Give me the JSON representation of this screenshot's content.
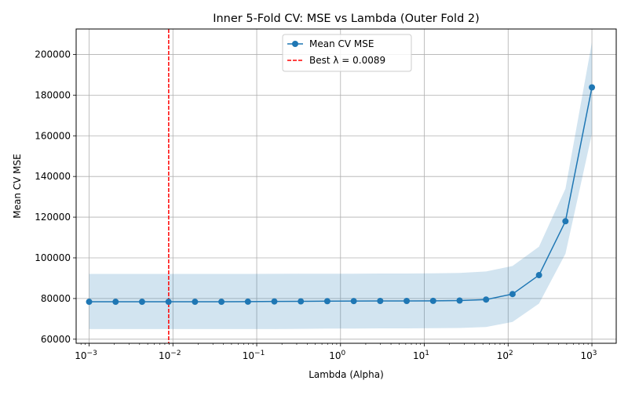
{
  "chart_data": {
    "type": "line",
    "title": "Inner 5-Fold CV: MSE vs Lambda (Outer Fold 2)",
    "xlabel": "Lambda (Alpha)",
    "ylabel": "Mean CV MSE",
    "xscale": "log",
    "xlim": [
      0.0007,
      1950
    ],
    "ylim": [
      58000,
      212500
    ],
    "grid": true,
    "legend_position": "top-center",
    "x_ticks": [
      {
        "value": 0.001,
        "base": "10",
        "exp": "−3"
      },
      {
        "value": 0.01,
        "base": "10",
        "exp": "−2"
      },
      {
        "value": 0.1,
        "base": "10",
        "exp": "−1"
      },
      {
        "value": 1,
        "base": "10",
        "exp": "0"
      },
      {
        "value": 10,
        "base": "10",
        "exp": "1"
      },
      {
        "value": 100,
        "base": "10",
        "exp": "2"
      },
      {
        "value": 1000,
        "base": "10",
        "exp": "3"
      }
    ],
    "y_ticks": [
      60000,
      80000,
      100000,
      120000,
      140000,
      160000,
      180000,
      200000
    ],
    "y_tick_labels": [
      "60000",
      "80000",
      "100000",
      "120000",
      "140000",
      "160000",
      "180000",
      "200000"
    ],
    "series": [
      {
        "name": "Mean CV MSE",
        "color": "#1f77b4",
        "band_color": "#1f77b4",
        "x": [
          0.001,
          0.00207,
          0.00428,
          0.00886,
          0.01833,
          0.03793,
          0.07848,
          0.16238,
          0.33598,
          0.69519,
          1.43845,
          2.97635,
          6.15848,
          12.74275,
          26.36651,
          54.55595,
          112.8838,
          233.5721,
          483.293,
          1000
        ],
        "y": [
          78400,
          78400,
          78400,
          78400,
          78400,
          78400,
          78450,
          78550,
          78600,
          78700,
          78750,
          78800,
          78800,
          78850,
          79000,
          79500,
          82200,
          91500,
          118000,
          183800
        ],
        "y_upper": [
          92100,
          92100,
          92100,
          92100,
          92100,
          92100,
          92100,
          92150,
          92200,
          92200,
          92200,
          92300,
          92300,
          92400,
          92600,
          93300,
          96000,
          105500,
          134000,
          206000
        ],
        "y_lower": [
          65000,
          65000,
          65000,
          65000,
          65000,
          65000,
          65000,
          65000,
          65100,
          65200,
          65200,
          65300,
          65300,
          65400,
          65500,
          66000,
          68500,
          77500,
          102000,
          161000
        ]
      }
    ],
    "reference_line": {
      "name": "Best λ = 0.0089",
      "x": 0.0089,
      "color": "#ff0000",
      "style": "dashed"
    }
  }
}
